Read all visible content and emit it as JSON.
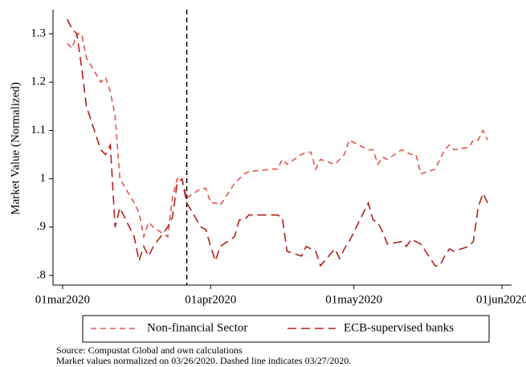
{
  "chart_data": {
    "type": "line",
    "y_label": "Market Value (Normalized)",
    "x": [
      "2020-03-02",
      "2020-03-03",
      "2020-03-04",
      "2020-03-05",
      "2020-03-06",
      "2020-03-09",
      "2020-03-10",
      "2020-03-11",
      "2020-03-12",
      "2020-03-13",
      "2020-03-16",
      "2020-03-17",
      "2020-03-18",
      "2020-03-19",
      "2020-03-20",
      "2020-03-23",
      "2020-03-24",
      "2020-03-25",
      "2020-03-26",
      "2020-03-27",
      "2020-03-30",
      "2020-03-31",
      "2020-04-01",
      "2020-04-02",
      "2020-04-03",
      "2020-04-06",
      "2020-04-07",
      "2020-04-08",
      "2020-04-09",
      "2020-04-14",
      "2020-04-15",
      "2020-04-16",
      "2020-04-17",
      "2020-04-20",
      "2020-04-21",
      "2020-04-22",
      "2020-04-23",
      "2020-04-24",
      "2020-04-27",
      "2020-04-28",
      "2020-04-29",
      "2020-04-30",
      "2020-05-04",
      "2020-05-05",
      "2020-05-06",
      "2020-05-07",
      "2020-05-08",
      "2020-05-11",
      "2020-05-12",
      "2020-05-13",
      "2020-05-14",
      "2020-05-15",
      "2020-05-18",
      "2020-05-19",
      "2020-05-20",
      "2020-05-21",
      "2020-05-22",
      "2020-05-25",
      "2020-05-26",
      "2020-05-27",
      "2020-05-28",
      "2020-05-29"
    ],
    "series": [
      {
        "name": "Non-financial Sector",
        "color": "#e0574f",
        "values": [
          1.28,
          1.27,
          1.3,
          1.3,
          1.25,
          1.2,
          1.21,
          1.18,
          1.13,
          1.0,
          0.95,
          0.93,
          0.88,
          0.91,
          0.9,
          0.88,
          0.96,
          1.0,
          1.0,
          0.96,
          0.98,
          0.98,
          0.95,
          0.95,
          0.945,
          0.99,
          1.0,
          1.01,
          1.015,
          1.02,
          1.02,
          1.04,
          1.03,
          1.05,
          1.055,
          1.055,
          1.02,
          1.04,
          1.03,
          1.04,
          1.05,
          1.08,
          1.06,
          1.06,
          1.03,
          1.045,
          1.04,
          1.06,
          1.055,
          1.05,
          1.05,
          1.01,
          1.02,
          1.04,
          1.06,
          1.07,
          1.06,
          1.065,
          1.08,
          1.08,
          1.1,
          1.08
        ]
      },
      {
        "name": "ECB-supervised banks",
        "color": "#b2221c",
        "values": [
          1.33,
          1.31,
          1.3,
          1.23,
          1.15,
          1.06,
          1.05,
          1.07,
          0.9,
          0.94,
          0.88,
          0.83,
          0.86,
          0.84,
          0.86,
          0.9,
          0.92,
          0.99,
          1.0,
          0.95,
          0.9,
          0.895,
          0.86,
          0.83,
          0.86,
          0.88,
          0.915,
          0.915,
          0.925,
          0.925,
          0.925,
          0.92,
          0.85,
          0.84,
          0.86,
          0.855,
          0.85,
          0.82,
          0.855,
          0.835,
          0.855,
          0.87,
          0.95,
          0.915,
          0.91,
          0.89,
          0.865,
          0.87,
          0.86,
          0.875,
          0.87,
          0.865,
          0.82,
          0.82,
          0.84,
          0.855,
          0.85,
          0.86,
          0.87,
          0.94,
          0.97,
          0.95
        ]
      }
    ],
    "xlim": [
      "2020-02-28",
      "2020-06-03"
    ],
    "xticks": [
      {
        "value": "2020-03-01",
        "label": "01mar2020"
      },
      {
        "value": "2020-04-01",
        "label": "01apr2020"
      },
      {
        "value": "2020-05-01",
        "label": "01may2020"
      },
      {
        "value": "2020-06-01",
        "label": "01jun2020"
      }
    ],
    "ylim": [
      0.78,
      1.35
    ],
    "yticks": [
      {
        "value": 0.8,
        "label": ".8"
      },
      {
        "value": 0.9,
        "label": ".9"
      },
      1,
      1.1,
      1.2,
      1.3
    ],
    "vline": "2020-03-27",
    "source": [
      "Source: Compustat Global and own calculations",
      "Market values normalized on 03/26/2020. Dashed line indicates 03/27/2020."
    ]
  }
}
